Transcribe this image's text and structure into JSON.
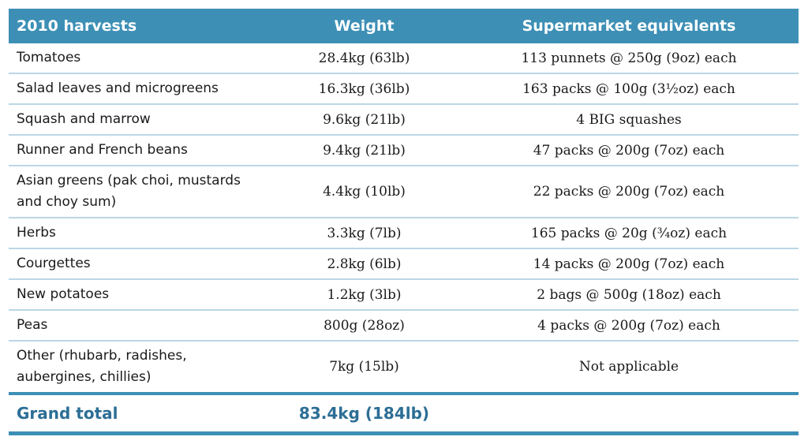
{
  "headers": {
    "harvests": "2010 harvests",
    "weight": "Weight",
    "equivalents": "Supermarket equivalents"
  },
  "rows": [
    {
      "crop": "Tomatoes",
      "weight": "28.4kg (63lb)",
      "equivalent": "113 punnets @ 250g (9oz) each"
    },
    {
      "crop": "Salad leaves and microgreens",
      "weight": "16.3kg (36lb)",
      "equivalent": "163 packs @ 100g (3½oz) each"
    },
    {
      "crop": "Squash and marrow",
      "weight": "9.6kg (21lb)",
      "equivalent": "4 BIG squashes"
    },
    {
      "crop": "Runner and French beans",
      "weight": "9.4kg (21lb)",
      "equivalent": "47 packs @ 200g (7oz) each"
    },
    {
      "crop": "Asian greens (pak choi, mustards and choy sum)",
      "weight": "4.4kg (10lb)",
      "equivalent": "22 packs @ 200g (7oz) each"
    },
    {
      "crop": "Herbs",
      "weight": "3.3kg (7lb)",
      "equivalent": "165 packs @ 20g (¾oz) each"
    },
    {
      "crop": "Courgettes",
      "weight": "2.8kg (6lb)",
      "equivalent": "14 packs @ 200g (7oz) each"
    },
    {
      "crop": "New potatoes",
      "weight": "1.2kg (3lb)",
      "equivalent": "2 bags @ 500g (18oz) each"
    },
    {
      "crop": "Peas",
      "weight": "800g (28oz)",
      "equivalent": "4 packs @ 200g (7oz) each"
    },
    {
      "crop": "Other (rhubarb, radishes, aubergines, chillies)",
      "weight": "7kg (15lb)",
      "equivalent": "Not applicable"
    }
  ],
  "total": {
    "label": "Grand total",
    "weight": "83.4kg (184lb)"
  },
  "colors": {
    "header_bg": "#3d8fb5",
    "row_divider": "#bcd7e6",
    "total_text": "#2c6e95"
  }
}
